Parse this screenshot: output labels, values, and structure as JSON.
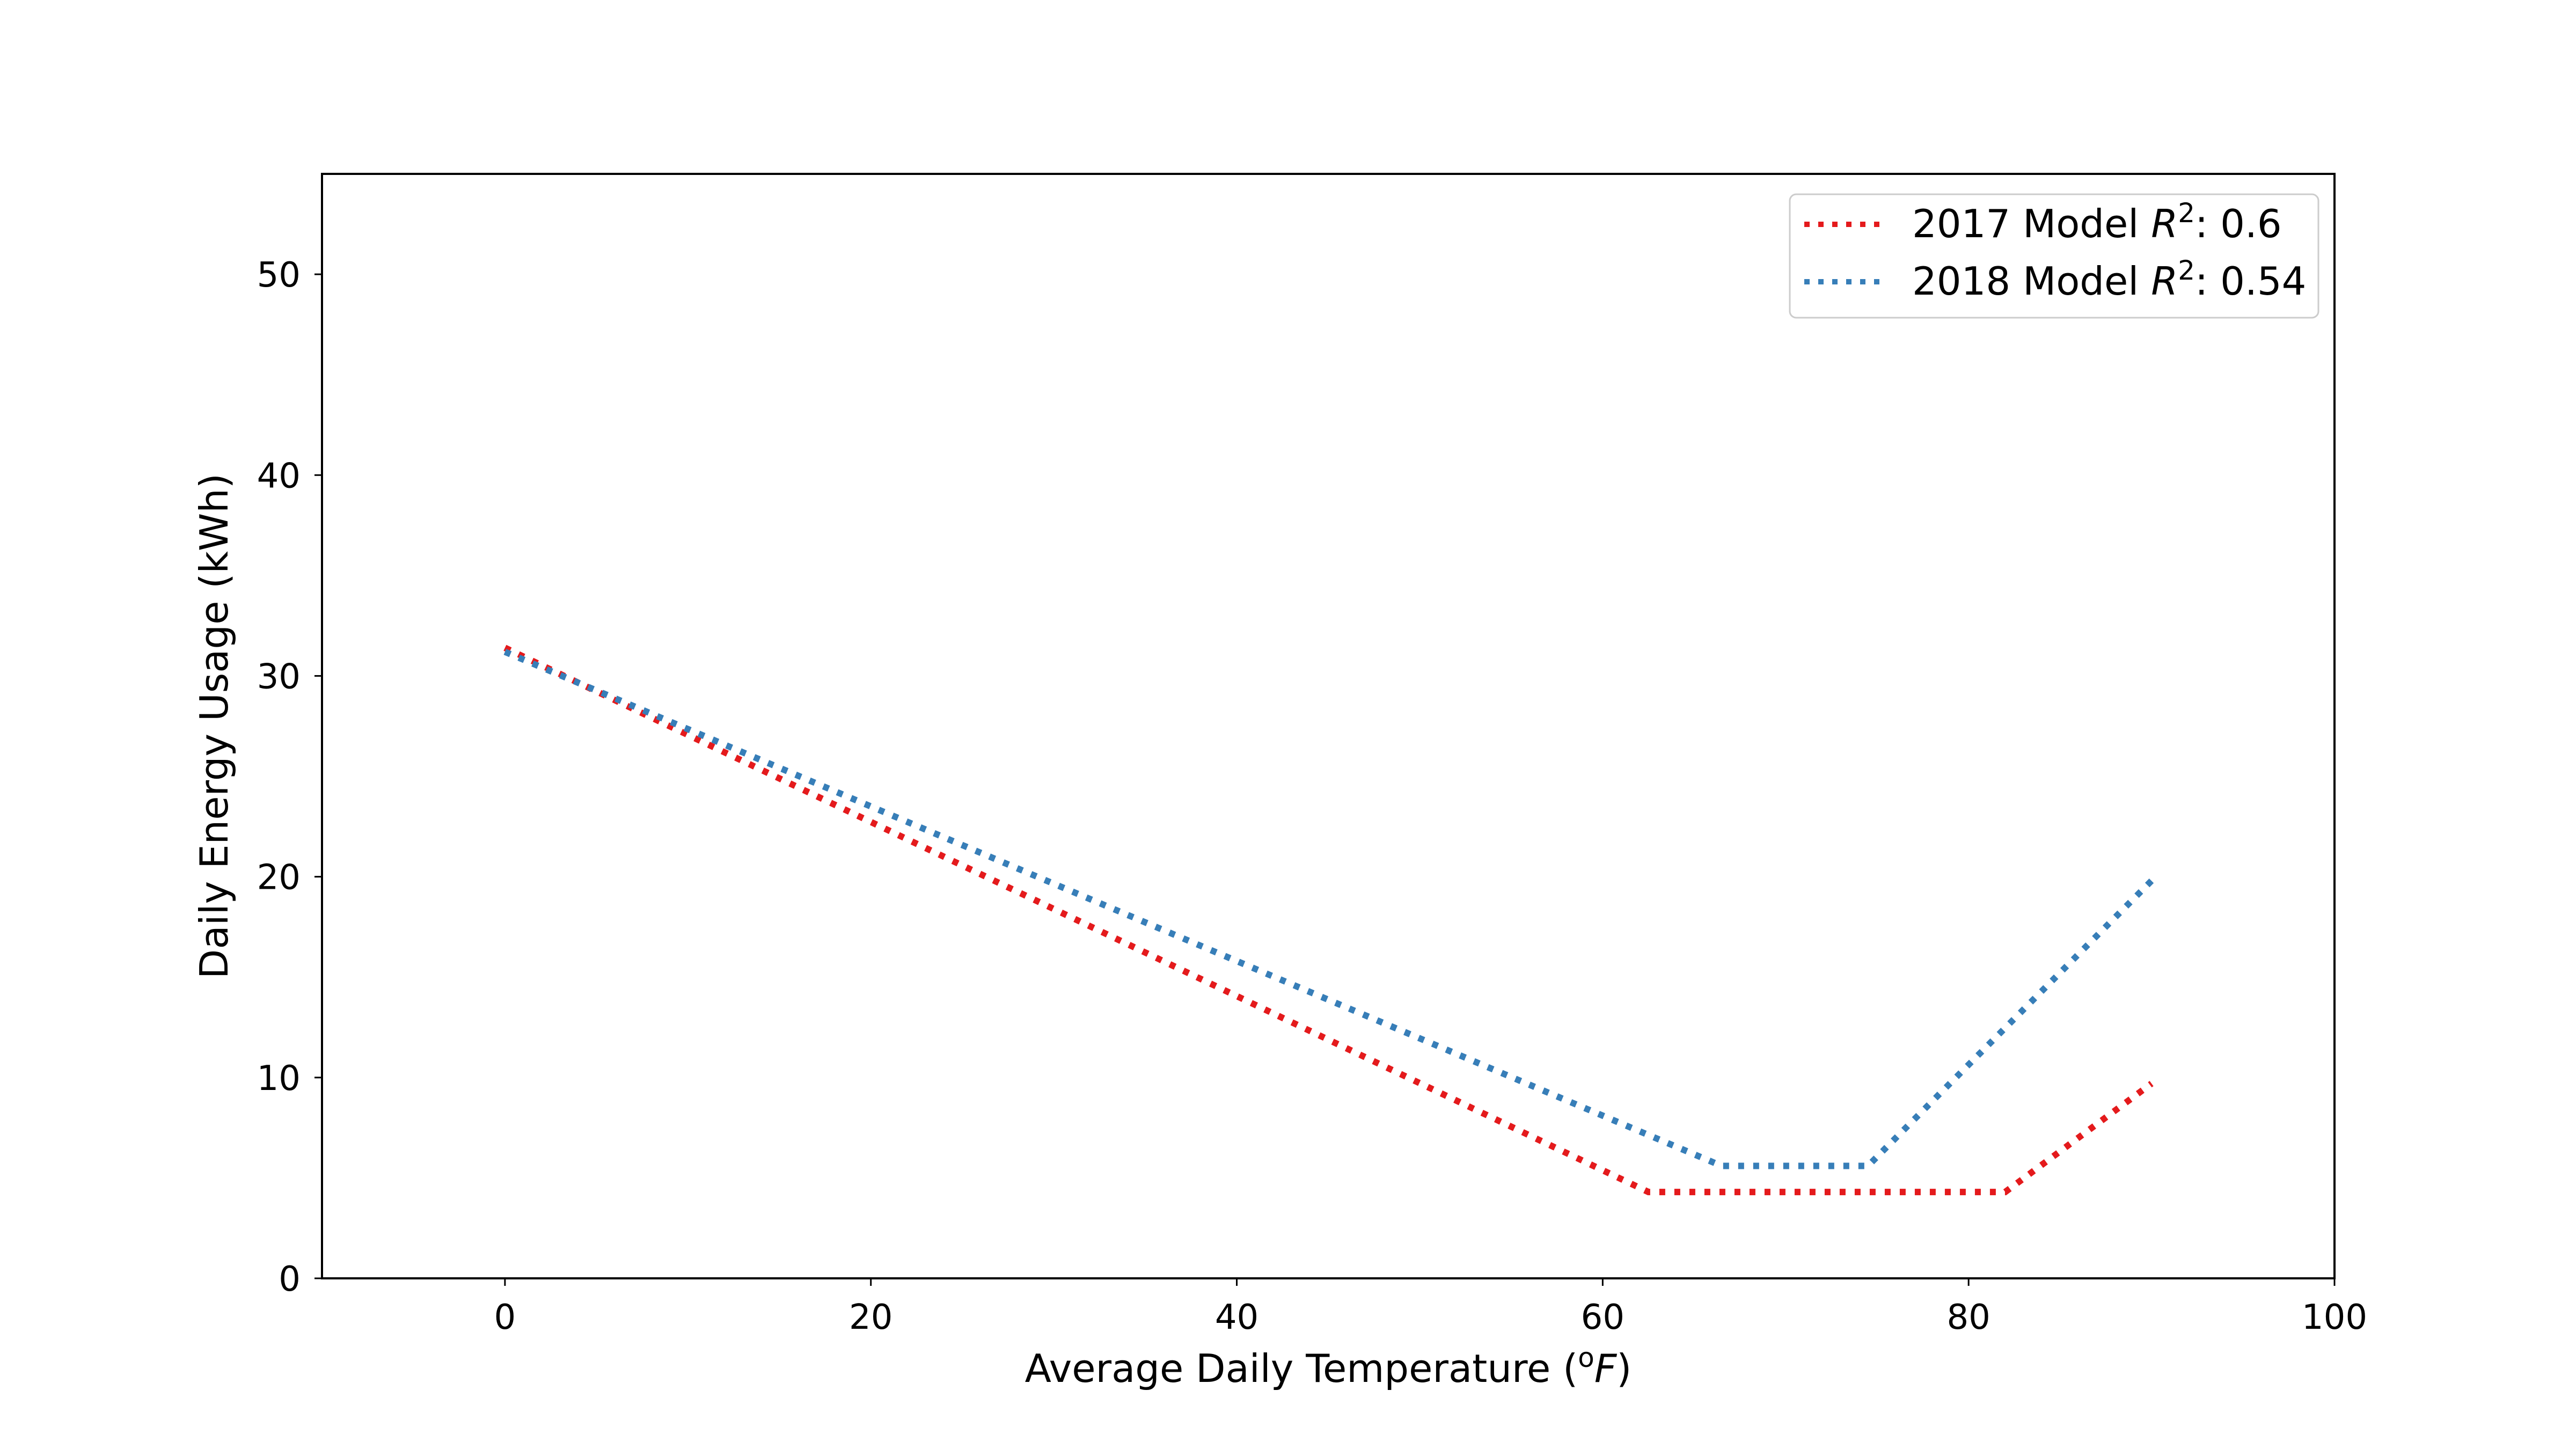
{
  "chart_data": {
    "type": "line",
    "title": "",
    "xlabel": "Average Daily Temperature (",
    "xlabel_super": "o",
    "xlabel_italic": "F",
    "xlabel_suffix": ")",
    "ylabel": "Daily Energy Usage (kWh)",
    "xlim": [
      -10,
      100
    ],
    "ylim": [
      0,
      55
    ],
    "xticks": [
      0,
      20,
      40,
      60,
      80,
      100
    ],
    "yticks": [
      0,
      10,
      20,
      30,
      40,
      50
    ],
    "grid": false,
    "legend_position": "top-right",
    "line_style": "dotted",
    "series": [
      {
        "name": "2017 Model R²: 0.6",
        "label_prefix": "2017 Model ",
        "label_var": "R",
        "label_super": "2",
        "label_suffix": ": 0.6",
        "color": "#e41a1c",
        "x": [
          0,
          62.5,
          82,
          90
        ],
        "y": [
          31.4,
          4.3,
          4.3,
          9.7
        ]
      },
      {
        "name": "2018 Model R²: 0.54",
        "label_prefix": "2018 Model ",
        "label_var": "R",
        "label_super": "2",
        "label_suffix": ": 0.54",
        "color": "#377eb8",
        "x": [
          0,
          66.5,
          74.5,
          90
        ],
        "y": [
          31.2,
          5.6,
          5.6,
          19.8
        ]
      }
    ]
  }
}
